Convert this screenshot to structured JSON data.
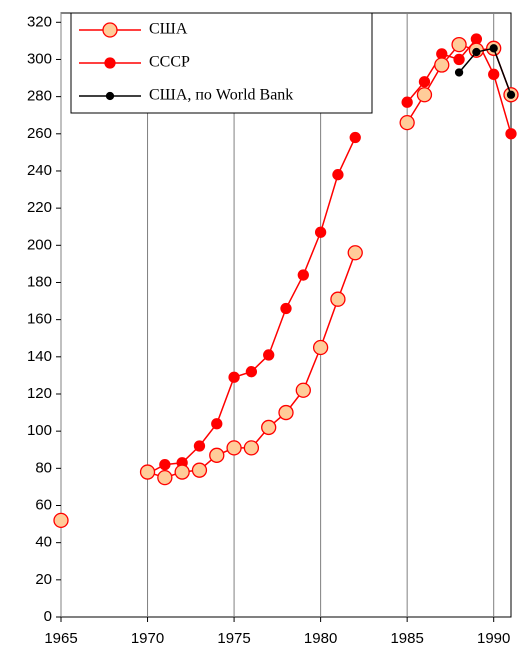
{
  "chart_data": {
    "type": "line",
    "x": [
      1965,
      1966,
      1967,
      1968,
      1969,
      1970,
      1971,
      1972,
      1973,
      1974,
      1975,
      1976,
      1977,
      1978,
      1979,
      1980,
      1981,
      1982,
      1983,
      1984,
      1985,
      1986,
      1987,
      1988,
      1989,
      1990,
      1991
    ],
    "series": [
      {
        "name": "США",
        "color": "#ff0000",
        "marker_fill": "#ffcc99",
        "values": [
          52,
          null,
          null,
          null,
          null,
          78,
          75,
          78,
          79,
          87,
          91,
          91,
          102,
          110,
          122,
          145,
          171,
          196,
          null,
          null,
          266,
          281,
          297,
          308,
          305,
          306,
          281
        ]
      },
      {
        "name": "СССР",
        "color": "#ff0000",
        "marker_fill": "#ff0000",
        "values": [
          52,
          null,
          null,
          null,
          null,
          77,
          82,
          83,
          92,
          104,
          129,
          132,
          141,
          166,
          184,
          207,
          238,
          258,
          null,
          null,
          277,
          288,
          303,
          300,
          311,
          292,
          260
        ]
      },
      {
        "name": "США, по World Bank",
        "color": "#000000",
        "marker_fill": "#000000",
        "values": [
          null,
          null,
          null,
          null,
          null,
          null,
          null,
          null,
          null,
          null,
          null,
          null,
          null,
          null,
          null,
          null,
          null,
          null,
          null,
          null,
          null,
          null,
          null,
          293,
          304,
          306,
          281
        ]
      }
    ],
    "xlim": [
      1965,
      1991
    ],
    "xticks": [
      1965,
      1970,
      1975,
      1980,
      1985,
      1990
    ],
    "ylim": [
      0,
      325
    ],
    "yticks": [
      0,
      20,
      40,
      60,
      80,
      100,
      120,
      140,
      160,
      180,
      200,
      220,
      240,
      260,
      280,
      300,
      320
    ],
    "grid": "x",
    "legend": "upper-left"
  }
}
